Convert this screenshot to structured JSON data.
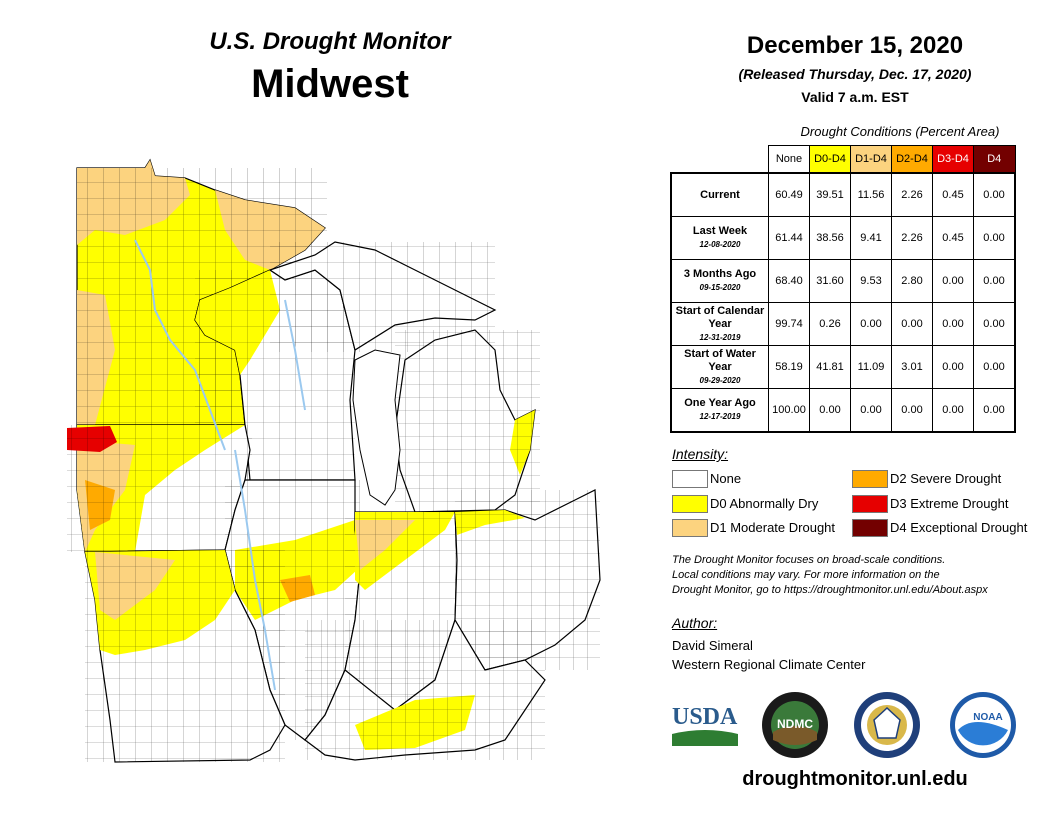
{
  "header": {
    "subtitle": "U.S. Drought Monitor",
    "region": "Midwest",
    "date": "December 15, 2020",
    "released": "(Released Thursday, Dec. 17, 2020)",
    "valid": "Valid 7 a.m. EST"
  },
  "conditions": {
    "caption": "Drought Conditions (Percent Area)",
    "columns": [
      "None",
      "D0-D4",
      "D1-D4",
      "D2-D4",
      "D3-D4",
      "D4"
    ],
    "column_colors": [
      "#ffffff",
      "#ffff00",
      "#fcd37f",
      "#ffaa00",
      "#e60000",
      "#730000"
    ],
    "rows": [
      {
        "label": "Current",
        "date": "",
        "values": [
          "60.49",
          "39.51",
          "11.56",
          "2.26",
          "0.45",
          "0.00"
        ]
      },
      {
        "label": "Last Week",
        "date": "12-08-2020",
        "values": [
          "61.44",
          "38.56",
          "9.41",
          "2.26",
          "0.45",
          "0.00"
        ]
      },
      {
        "label": "3 Months Ago",
        "date": "09-15-2020",
        "values": [
          "68.40",
          "31.60",
          "9.53",
          "2.80",
          "0.00",
          "0.00"
        ]
      },
      {
        "label": "Start of Calendar Year",
        "date": "12-31-2019",
        "values": [
          "99.74",
          "0.26",
          "0.00",
          "0.00",
          "0.00",
          "0.00"
        ]
      },
      {
        "label": "Start of Water Year",
        "date": "09-29-2020",
        "values": [
          "58.19",
          "41.81",
          "11.09",
          "3.01",
          "0.00",
          "0.00"
        ]
      },
      {
        "label": "One Year Ago",
        "date": "12-17-2019",
        "values": [
          "100.00",
          "0.00",
          "0.00",
          "0.00",
          "0.00",
          "0.00"
        ]
      }
    ]
  },
  "legend": {
    "title": "Intensity:",
    "items": [
      {
        "label": "None",
        "color": "#ffffff"
      },
      {
        "label": "D0 Abnormally Dry",
        "color": "#ffff00"
      },
      {
        "label": "D1 Moderate Drought",
        "color": "#fcd37f"
      },
      {
        "label": "D2 Severe Drought",
        "color": "#ffaa00"
      },
      {
        "label": "D3 Extreme Drought",
        "color": "#e60000"
      },
      {
        "label": "D4 Exceptional Drought",
        "color": "#730000"
      }
    ]
  },
  "note": [
    "The Drought Monitor focuses on broad-scale conditions.",
    "Local conditions may vary. For more information on the",
    "Drought Monitor, go to https://droughtmonitor.unl.edu/About.aspx"
  ],
  "author": {
    "title": "Author:",
    "name": "David Simeral",
    "org": "Western Regional Climate Center"
  },
  "logos": {
    "usda": "USDA",
    "ndmc": "NDMC",
    "noaa": "NOAA"
  },
  "website": "droughtmonitor.unl.edu",
  "map": {
    "water_color": "#9bc9ef",
    "border_color": "#000000"
  }
}
